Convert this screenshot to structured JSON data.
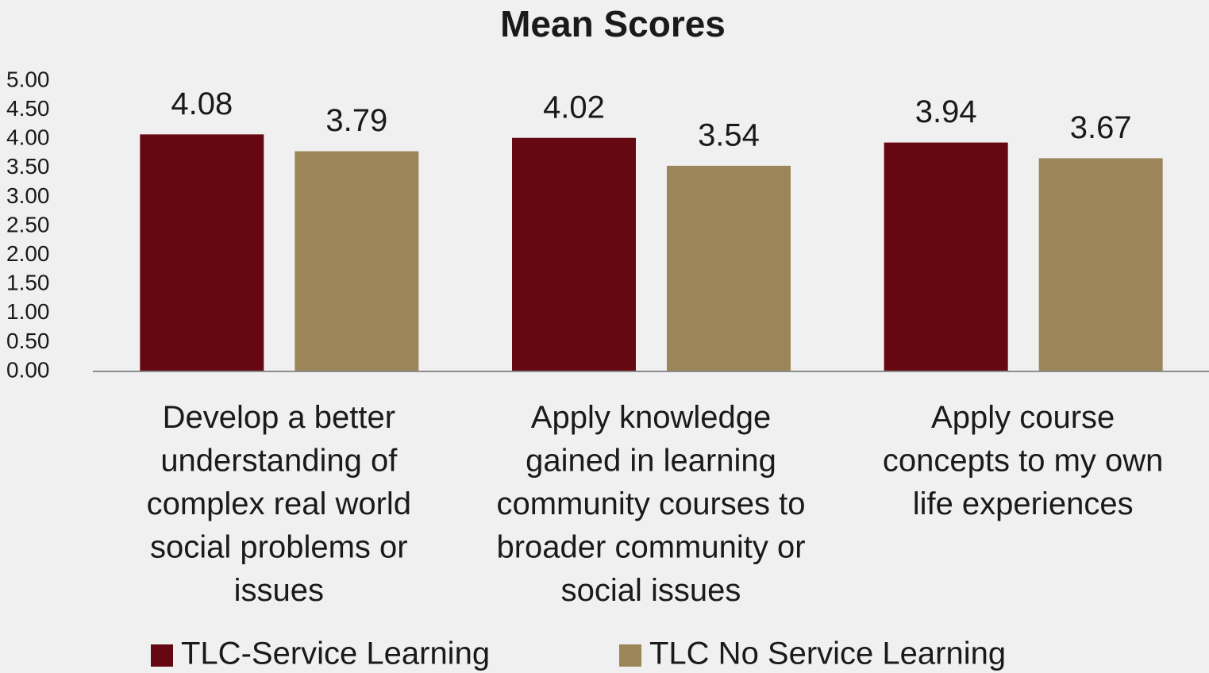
{
  "chart_data": {
    "type": "bar",
    "title": "Mean Scores",
    "categories": [
      "Develop a better\nunderstanding of\ncomplex real world\nsocial problems or\nissues",
      "Apply knowledge\ngained in learning\ncommunity courses to\nbroader community or\nsocial issues",
      "Apply course\nconcepts to my own\nlife experiences"
    ],
    "series": [
      {
        "name": "TLC-Service Learning",
        "color": "#650812",
        "values": [
          4.08,
          4.02,
          3.94
        ]
      },
      {
        "name": "TLC No Service Learning",
        "color": "#9c8659",
        "values": [
          3.79,
          3.54,
          3.67
        ]
      }
    ],
    "ylim": [
      0,
      5
    ],
    "yticks": [
      {
        "value": 0,
        "label": "0.00"
      },
      {
        "value": 0.5,
        "label": "0.50"
      },
      {
        "value": 1,
        "label": "1.00"
      },
      {
        "value": 1.5,
        "label": "1.50"
      },
      {
        "value": 2,
        "label": "2.00"
      },
      {
        "value": 2.5,
        "label": "2.50"
      },
      {
        "value": 3,
        "label": "3.00"
      },
      {
        "value": 3.5,
        "label": "3.50"
      },
      {
        "value": 4,
        "label": "4.00"
      },
      {
        "value": 4.5,
        "label": "4.50"
      },
      {
        "value": 5,
        "label": "5.00"
      }
    ],
    "grid": false,
    "legend": "bottom"
  }
}
